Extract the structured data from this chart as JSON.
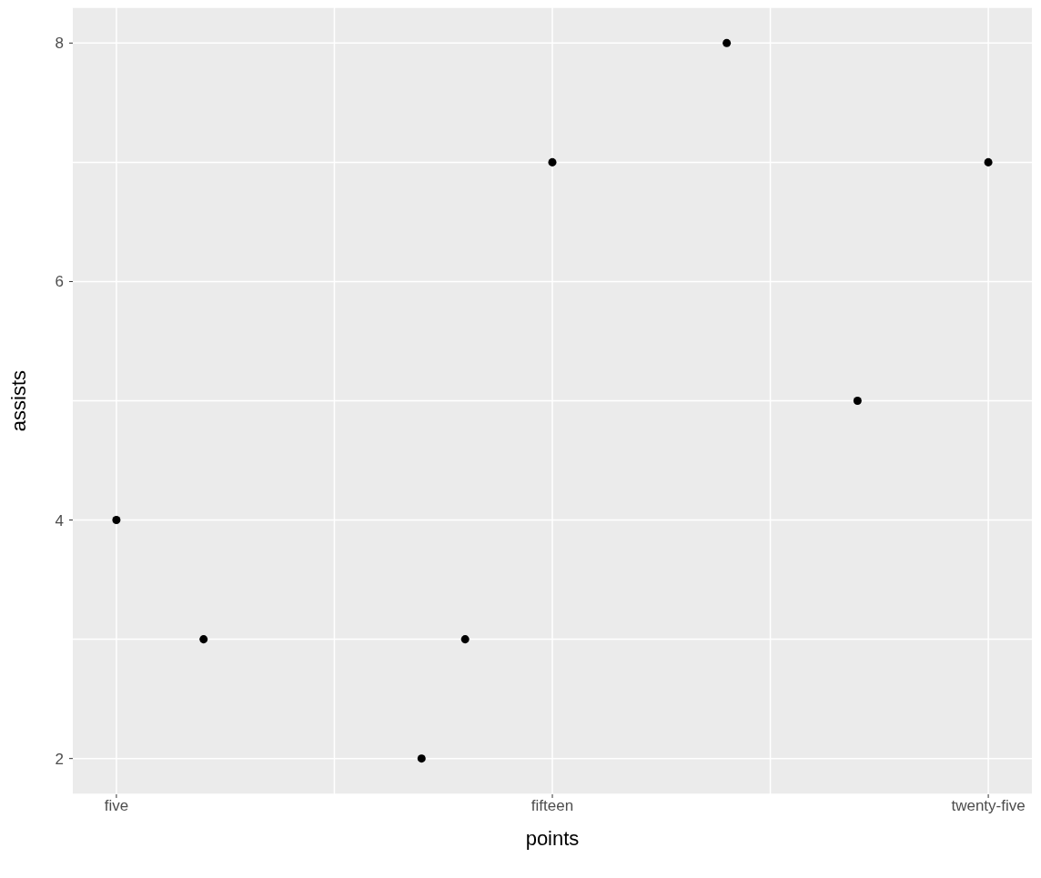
{
  "chart_data": {
    "type": "scatter",
    "xlabel": "points",
    "ylabel": "assists",
    "categories": [
      "five",
      null,
      null,
      null,
      null,
      null,
      null,
      null,
      null,
      null,
      "fifteen",
      null,
      null,
      null,
      null,
      null,
      null,
      null,
      null,
      null,
      "twenty-five"
    ],
    "series": [
      {
        "color": "#000000",
        "values": [
          4,
          null,
          3,
          null,
          null,
          null,
          null,
          2,
          3,
          null,
          7,
          null,
          null,
          null,
          8,
          null,
          null,
          5,
          null,
          null,
          7
        ]
      }
    ],
    "ylim": [
      1.7,
      8.3
    ],
    "yticks": [
      2,
      {
        "value": 3,
        "label": null
      },
      4,
      {
        "value": 5,
        "label": null
      },
      6,
      {
        "value": 7,
        "label": null
      },
      8
    ],
    "grid": true,
    "marker": "circle"
  }
}
